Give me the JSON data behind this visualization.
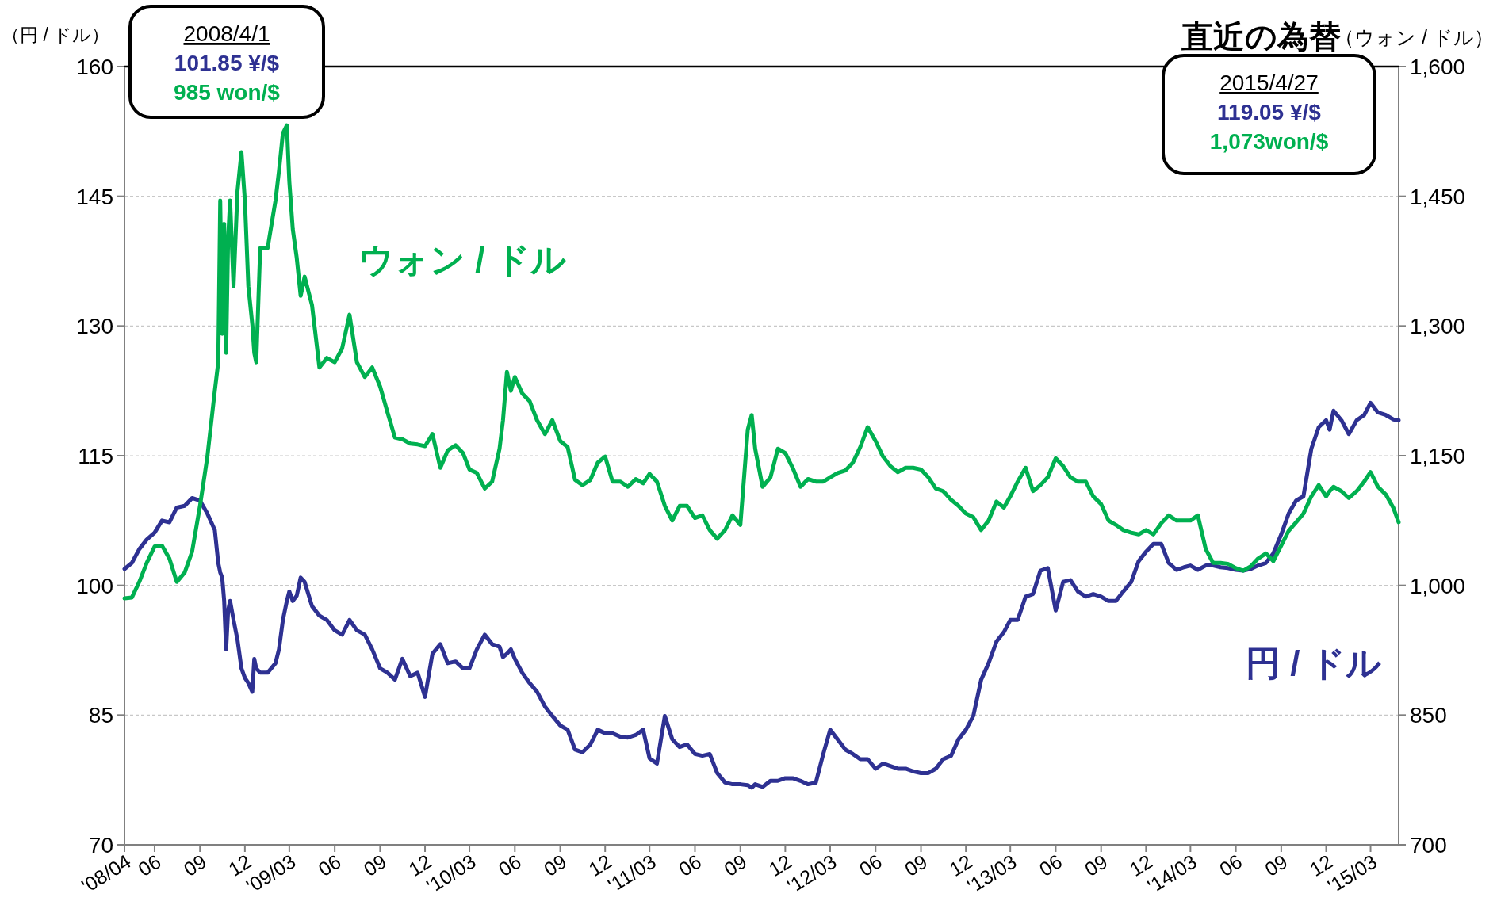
{
  "chart_data": {
    "type": "line",
    "title": "直近の為替",
    "ylabel": "（円 / ドル）",
    "y2label": "（ウォン / ドル）",
    "annotations": [
      "2008/4/1",
      "101.85 ¥/$",
      "985 won/$",
      "2015/4/27",
      "119.05 ¥/$",
      "1,073won/$"
    ],
    "xlim": [
      "2008-04-01",
      "2015-04-27"
    ],
    "ylim": [
      70,
      160
    ],
    "y2lim": [
      700,
      1600
    ],
    "yticks": [
      70,
      85,
      100,
      115,
      130,
      145,
      160
    ],
    "y2ticks": [
      700,
      850,
      {
        "value": 1000,
        "label": "1,000"
      },
      {
        "value": 1150,
        "label": "1,150"
      },
      {
        "value": 1300,
        "label": "1,300"
      },
      {
        "value": 1450,
        "label": "1,450"
      },
      {
        "value": 1600,
        "label": "1,600"
      }
    ],
    "xticks": [
      {
        "value": "2008-04",
        "label": "'08/04"
      },
      {
        "value": "2008-06",
        "label": "06"
      },
      {
        "value": "2008-09",
        "label": "09"
      },
      {
        "value": "2008-12",
        "label": "12"
      },
      {
        "value": "2009-03",
        "label": "'09/03"
      },
      {
        "value": "2009-06",
        "label": "06"
      },
      {
        "value": "2009-09",
        "label": "09"
      },
      {
        "value": "2009-12",
        "label": "12"
      },
      {
        "value": "2010-03",
        "label": "'10/03"
      },
      {
        "value": "2010-06",
        "label": "06"
      },
      {
        "value": "2010-09",
        "label": "09"
      },
      {
        "value": "2010-12",
        "label": "12"
      },
      {
        "value": "2011-03",
        "label": "'11/03"
      },
      {
        "value": "2011-06",
        "label": "06"
      },
      {
        "value": "2011-09",
        "label": "09"
      },
      {
        "value": "2011-12",
        "label": "12"
      },
      {
        "value": "2012-03",
        "label": "'12/03"
      },
      {
        "value": "2012-06",
        "label": "06"
      },
      {
        "value": "2012-09",
        "label": "09"
      },
      {
        "value": "2012-12",
        "label": "12"
      },
      {
        "value": "2013-03",
        "label": "'13/03"
      },
      {
        "value": "2013-06",
        "label": "06"
      },
      {
        "value": "2013-09",
        "label": "09"
      },
      {
        "value": "2013-12",
        "label": "12"
      },
      {
        "value": "2014-03",
        "label": "'14/03"
      },
      {
        "value": "2014-06",
        "label": "06"
      },
      {
        "value": "2014-09",
        "label": "09"
      },
      {
        "value": "2014-12",
        "label": "12"
      },
      {
        "value": "2015-03",
        "label": "'15/03"
      }
    ],
    "grid": "y",
    "x": [
      "2008-04-01",
      "2008-04-16",
      "2008-05-01",
      "2008-05-16",
      "2008-06-01",
      "2008-06-16",
      "2008-07-01",
      "2008-07-16",
      "2008-08-01",
      "2008-08-16",
      "2008-09-01",
      "2008-09-16",
      "2008-10-01",
      "2008-10-08",
      "2008-10-12",
      "2008-10-16",
      "2008-10-20",
      "2008-10-24",
      "2008-10-28",
      "2008-11-01",
      "2008-11-08",
      "2008-11-16",
      "2008-11-24",
      "2008-12-01",
      "2008-12-08",
      "2008-12-16",
      "2008-12-20",
      "2008-12-24",
      "2009-01-01",
      "2009-01-16",
      "2009-02-01",
      "2009-02-08",
      "2009-02-16",
      "2009-02-24",
      "2009-03-01",
      "2009-03-08",
      "2009-03-16",
      "2009-03-24",
      "2009-04-01",
      "2009-04-16",
      "2009-05-01",
      "2009-05-16",
      "2009-06-01",
      "2009-06-16",
      "2009-07-01",
      "2009-07-16",
      "2009-08-01",
      "2009-08-16",
      "2009-09-01",
      "2009-09-16",
      "2009-10-01",
      "2009-10-16",
      "2009-11-01",
      "2009-11-16",
      "2009-12-01",
      "2009-12-16",
      "2010-01-01",
      "2010-01-16",
      "2010-02-01",
      "2010-02-16",
      "2010-03-01",
      "2010-03-16",
      "2010-04-01",
      "2010-04-16",
      "2010-05-01",
      "2010-05-08",
      "2010-05-16",
      "2010-05-24",
      "2010-06-01",
      "2010-06-16",
      "2010-07-01",
      "2010-07-16",
      "2010-08-01",
      "2010-08-16",
      "2010-09-01",
      "2010-09-16",
      "2010-10-01",
      "2010-10-16",
      "2010-11-01",
      "2010-11-16",
      "2010-12-01",
      "2010-12-16",
      "2011-01-01",
      "2011-01-16",
      "2011-02-01",
      "2011-02-16",
      "2011-03-01",
      "2011-03-16",
      "2011-04-01",
      "2011-04-16",
      "2011-05-01",
      "2011-05-16",
      "2011-06-01",
      "2011-06-16",
      "2011-07-01",
      "2011-07-16",
      "2011-08-01",
      "2011-08-16",
      "2011-09-01",
      "2011-09-16",
      "2011-09-24",
      "2011-10-01",
      "2011-10-16",
      "2011-11-01",
      "2011-11-16",
      "2011-12-01",
      "2011-12-16",
      "2012-01-01",
      "2012-01-16",
      "2012-02-01",
      "2012-02-16",
      "2012-03-01",
      "2012-03-16",
      "2012-04-01",
      "2012-04-16",
      "2012-05-01",
      "2012-05-16",
      "2012-06-01",
      "2012-06-16",
      "2012-07-01",
      "2012-07-16",
      "2012-08-01",
      "2012-08-16",
      "2012-09-01",
      "2012-09-16",
      "2012-10-01",
      "2012-10-16",
      "2012-11-01",
      "2012-11-16",
      "2012-12-01",
      "2012-12-16",
      "2013-01-01",
      "2013-01-16",
      "2013-02-01",
      "2013-02-16",
      "2013-03-01",
      "2013-03-16",
      "2013-04-01",
      "2013-04-16",
      "2013-05-01",
      "2013-05-16",
      "2013-06-01",
      "2013-06-16",
      "2013-07-01",
      "2013-07-16",
      "2013-08-01",
      "2013-08-16",
      "2013-09-01",
      "2013-09-16",
      "2013-10-01",
      "2013-10-16",
      "2013-11-01",
      "2013-11-16",
      "2013-12-01",
      "2013-12-16",
      "2014-01-01",
      "2014-01-16",
      "2014-02-01",
      "2014-02-16",
      "2014-03-01",
      "2014-03-16",
      "2014-04-01",
      "2014-04-16",
      "2014-05-01",
      "2014-05-16",
      "2014-06-01",
      "2014-06-16",
      "2014-07-01",
      "2014-07-16",
      "2014-08-01",
      "2014-08-16",
      "2014-09-01",
      "2014-09-16",
      "2014-10-01",
      "2014-10-16",
      "2014-11-01",
      "2014-11-16",
      "2014-12-01",
      "2014-12-08",
      "2014-12-16",
      "2015-01-01",
      "2015-01-16",
      "2015-02-01",
      "2015-02-16",
      "2015-03-01",
      "2015-03-16",
      "2015-04-01",
      "2015-04-16",
      "2015-04-27"
    ],
    "series": [
      {
        "name": "円 / ドル",
        "color": "#2e3192",
        "values": [
          101.9,
          102.6,
          104.2,
          105.3,
          106.1,
          107.5,
          107.3,
          109.0,
          109.2,
          110.1,
          109.8,
          108.3,
          106.4,
          102.6,
          101.5,
          100.9,
          98.2,
          92.6,
          97.1,
          98.2,
          96.0,
          93.7,
          90.4,
          89.3,
          88.7,
          87.7,
          91.5,
          90.4,
          89.9,
          89.9,
          91.0,
          92.6,
          96.0,
          98.2,
          99.3,
          98.2,
          98.8,
          100.9,
          100.4,
          97.6,
          96.5,
          96.0,
          94.8,
          94.3,
          96.0,
          94.8,
          94.3,
          92.6,
          90.4,
          89.9,
          89.1,
          91.5,
          89.5,
          89.9,
          87.1,
          92.1,
          93.2,
          91.0,
          91.2,
          90.4,
          90.4,
          92.6,
          94.3,
          93.2,
          92.9,
          91.7,
          92.1,
          92.6,
          91.5,
          89.9,
          88.7,
          87.7,
          86.0,
          84.9,
          83.8,
          83.3,
          81.0,
          80.7,
          81.6,
          83.3,
          82.9,
          82.9,
          82.5,
          82.4,
          82.7,
          83.3,
          80.0,
          79.4,
          84.9,
          82.2,
          81.3,
          81.6,
          80.5,
          80.3,
          80.5,
          78.3,
          77.2,
          77.0,
          77.0,
          76.9,
          76.6,
          77.0,
          76.7,
          77.4,
          77.4,
          77.7,
          77.7,
          77.4,
          77.0,
          77.2,
          80.5,
          83.3,
          82.2,
          81.0,
          80.5,
          79.9,
          79.9,
          78.8,
          79.4,
          79.1,
          78.8,
          78.8,
          78.5,
          78.3,
          78.3,
          78.8,
          79.9,
          80.3,
          82.2,
          83.3,
          84.9,
          89.1,
          91.0,
          93.5,
          94.6,
          96.0,
          96.0,
          98.7,
          99.0,
          101.7,
          102.0,
          97.1,
          100.4,
          100.6,
          99.3,
          98.7,
          99.0,
          98.7,
          98.2,
          98.2,
          99.3,
          100.4,
          102.8,
          103.9,
          104.8,
          104.8,
          102.6,
          101.8,
          102.1,
          102.3,
          101.8,
          102.3,
          102.3,
          102.1,
          102.0,
          101.8,
          101.7,
          101.9,
          102.3,
          102.6,
          103.7,
          105.9,
          108.3,
          109.8,
          110.3,
          115.8,
          118.3,
          119.1,
          118.0,
          120.2,
          119.1,
          117.5,
          119.1,
          119.7,
          121.1,
          120.0,
          119.7,
          119.2,
          119.1
        ]
      },
      {
        "name": "ウォン / ドル",
        "color": "#00b050",
        "axis": "y2",
        "values": [
          985,
          986,
          1004,
          1026,
          1045,
          1046,
          1031,
          1004,
          1015,
          1039,
          1092,
          1149,
          1225,
          1258,
          1445,
          1291,
          1418,
          1269,
          1401,
          1445,
          1346,
          1456,
          1501,
          1445,
          1346,
          1302,
          1269,
          1258,
          1390,
          1390,
          1445,
          1479,
          1523,
          1532,
          1467,
          1412,
          1379,
          1335,
          1357,
          1324,
          1252,
          1263,
          1258,
          1274,
          1313,
          1258,
          1241,
          1252,
          1230,
          1200,
          1171,
          1169,
          1164,
          1163,
          1161,
          1175,
          1136,
          1156,
          1162,
          1153,
          1134,
          1130,
          1112,
          1120,
          1158,
          1191,
          1247,
          1225,
          1241,
          1222,
          1213,
          1191,
          1175,
          1191,
          1167,
          1160,
          1122,
          1116,
          1122,
          1142,
          1149,
          1120,
          1120,
          1114,
          1123,
          1118,
          1129,
          1120,
          1092,
          1075,
          1092,
          1092,
          1078,
          1081,
          1064,
          1054,
          1064,
          1081,
          1070,
          1180,
          1197,
          1158,
          1114,
          1125,
          1158,
          1153,
          1136,
          1114,
          1123,
          1120,
          1120,
          1125,
          1130,
          1133,
          1142,
          1160,
          1183,
          1167,
          1149,
          1138,
          1131,
          1136,
          1136,
          1134,
          1125,
          1112,
          1109,
          1099,
          1092,
          1083,
          1079,
          1064,
          1075,
          1097,
          1090,
          1103,
          1120,
          1136,
          1109,
          1116,
          1125,
          1147,
          1138,
          1125,
          1120,
          1120,
          1103,
          1094,
          1075,
          1070,
          1064,
          1061,
          1059,
          1064,
          1059,
          1072,
          1081,
          1075,
          1075,
          1075,
          1081,
          1042,
          1026,
          1026,
          1025,
          1020,
          1017,
          1022,
          1031,
          1037,
          1028,
          1046,
          1063,
          1073,
          1083,
          1103,
          1116,
          1103,
          1109,
          1114,
          1109,
          1101,
          1109,
          1120,
          1131,
          1114,
          1105,
          1090,
          1073
        ]
      }
    ]
  }
}
